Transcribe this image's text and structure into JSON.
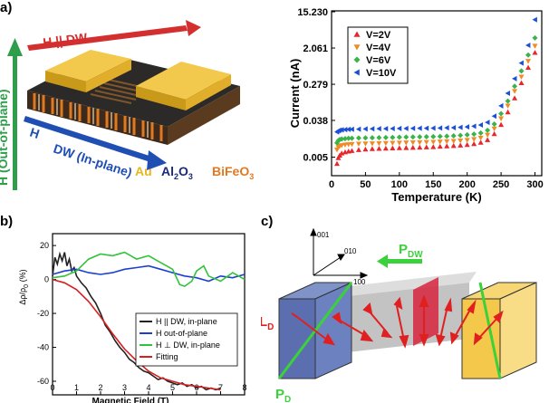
{
  "panel_labels": {
    "a": "a)",
    "b": "b)",
    "c": "c)"
  },
  "device": {
    "h_dw": "H || DW",
    "h_out_of_plane": "H (Out-of-plane)",
    "h_label": "H",
    "dw_in_plane": "DW (In-plane)",
    "materials": {
      "au": "Au",
      "al2o3_main": "Al",
      "al2o3_sub1": "2",
      "al2o3_o": "O",
      "al2o3_sub2": "3",
      "bfo_main": "BiFeO",
      "bfo_sub": "3"
    },
    "colors": {
      "red_arrow": "#d32f2f",
      "green_arrow": "#2e9e4b",
      "blue_arrow": "#1f4fb3",
      "au": "#e6b81f",
      "al2o3": "#1a2a7a",
      "bfo": "#e07a22"
    }
  },
  "chart_data": [
    {
      "id": "current-vs-temperature",
      "type": "scatter",
      "xlabel": "Temperature (K)",
      "ylabel": "Current (nA)",
      "xlim": [
        0,
        310
      ],
      "xticks": [
        0,
        50,
        100,
        150,
        200,
        250,
        300
      ],
      "yscale": "log",
      "ytick_labels": [
        "0.005",
        "0.038",
        "0.279",
        "2.061",
        "15.230"
      ],
      "yticks": [
        0.005,
        0.038,
        0.279,
        2.061,
        15.23
      ],
      "ylim": [
        0.0018,
        16
      ],
      "legend_position": "top-left",
      "series": [
        {
          "name": "V=2V",
          "color": "#e8262b",
          "marker": "triangle-up",
          "x": [
            8,
            10,
            12,
            15,
            20,
            25,
            30,
            40,
            50,
            60,
            70,
            80,
            90,
            100,
            110,
            120,
            130,
            140,
            150,
            160,
            170,
            180,
            190,
            200,
            210,
            220,
            230,
            240,
            250,
            260,
            270,
            280,
            290,
            300
          ],
          "y": [
            0.0035,
            0.0048,
            0.0055,
            0.0062,
            0.0066,
            0.0069,
            0.0071,
            0.0075,
            0.0077,
            0.0079,
            0.008,
            0.0081,
            0.0082,
            0.0083,
            0.0084,
            0.0085,
            0.0086,
            0.0087,
            0.0088,
            0.009,
            0.0092,
            0.0094,
            0.0096,
            0.0099,
            0.0104,
            0.0112,
            0.013,
            0.018,
            0.03,
            0.06,
            0.13,
            0.3,
            0.7,
            1.6
          ]
        },
        {
          "name": "V=4V",
          "color": "#f08a24",
          "marker": "triangle-down",
          "x": [
            8,
            10,
            12,
            15,
            20,
            25,
            30,
            40,
            50,
            60,
            70,
            80,
            90,
            100,
            110,
            120,
            130,
            140,
            150,
            160,
            170,
            180,
            190,
            200,
            210,
            220,
            230,
            240,
            250,
            260,
            270,
            280,
            290,
            300
          ],
          "y": [
            0.0075,
            0.0085,
            0.0092,
            0.0096,
            0.0099,
            0.0101,
            0.0102,
            0.0104,
            0.0105,
            0.0106,
            0.0107,
            0.0108,
            0.0109,
            0.011,
            0.0111,
            0.0112,
            0.0113,
            0.0114,
            0.0115,
            0.0117,
            0.0119,
            0.0121,
            0.0124,
            0.0128,
            0.0134,
            0.0145,
            0.017,
            0.024,
            0.042,
            0.085,
            0.19,
            0.42,
            1.0,
            2.3
          ]
        },
        {
          "name": "V=6V",
          "color": "#3bb34a",
          "marker": "diamond",
          "x": [
            8,
            10,
            12,
            15,
            20,
            25,
            30,
            40,
            50,
            60,
            70,
            80,
            90,
            100,
            110,
            120,
            130,
            140,
            150,
            160,
            170,
            180,
            190,
            200,
            210,
            220,
            230,
            240,
            250,
            260,
            270,
            280,
            290,
            300
          ],
          "y": [
            0.011,
            0.0125,
            0.0132,
            0.0136,
            0.0139,
            0.0141,
            0.0142,
            0.0144,
            0.0145,
            0.0146,
            0.0147,
            0.0148,
            0.0149,
            0.015,
            0.0151,
            0.0152,
            0.0153,
            0.0154,
            0.0155,
            0.0157,
            0.0159,
            0.0162,
            0.0166,
            0.0171,
            0.0178,
            0.019,
            0.022,
            0.031,
            0.055,
            0.11,
            0.25,
            0.58,
            1.4,
            3.6
          ]
        },
        {
          "name": "V=10V",
          "color": "#1c4fd8",
          "marker": "triangle-left",
          "x": [
            8,
            10,
            12,
            15,
            20,
            25,
            30,
            40,
            50,
            60,
            70,
            80,
            90,
            100,
            110,
            120,
            130,
            140,
            150,
            160,
            170,
            180,
            190,
            200,
            210,
            220,
            230,
            240,
            250,
            260,
            270,
            280,
            290,
            300
          ],
          "y": [
            0.02,
            0.0215,
            0.0222,
            0.0226,
            0.0229,
            0.0231,
            0.0233,
            0.0235,
            0.0237,
            0.0239,
            0.024,
            0.0241,
            0.0242,
            0.0243,
            0.0244,
            0.0245,
            0.0246,
            0.0247,
            0.0248,
            0.025,
            0.0252,
            0.0255,
            0.0259,
            0.0265,
            0.0275,
            0.0295,
            0.034,
            0.048,
            0.085,
            0.17,
            0.38,
            0.9,
            2.4,
            9.8
          ]
        }
      ]
    },
    {
      "id": "magnetoresistance",
      "type": "line",
      "xlabel": "Magnetic Field (T)",
      "ylabel_main": "Δρ/ρ",
      "ylabel_sub": "0",
      "ylabel_unit": " (%)",
      "xlim": [
        0,
        8
      ],
      "xticks": [
        0,
        1,
        2,
        3,
        4,
        5,
        6,
        7,
        8
      ],
      "ylim": [
        -68,
        27
      ],
      "yticks": [
        20,
        0,
        -20,
        -40,
        -60
      ],
      "legend_position": "center-right",
      "series": [
        {
          "name": "H || DW, in-plane",
          "color": "#222222",
          "x": [
            0,
            0.1,
            0.2,
            0.3,
            0.4,
            0.5,
            0.6,
            0.7,
            0.8,
            0.9,
            1.0,
            1.2,
            1.4,
            1.6,
            1.8,
            2.0,
            2.2,
            2.4,
            2.6,
            2.8,
            3.0,
            3.2,
            3.4,
            3.6,
            3.8,
            4.0,
            4.2,
            4.4,
            4.6,
            4.8,
            5.0,
            5.2,
            5.4,
            5.6,
            5.8,
            6.0,
            6.2,
            6.4,
            6.6,
            6.8,
            7.0
          ],
          "y": [
            2,
            13,
            9,
            15,
            11,
            16,
            8,
            12,
            5,
            7,
            2,
            -2,
            -5,
            -10,
            -14,
            -20,
            -27,
            -31,
            -36,
            -40,
            -43,
            -47,
            -49,
            -52,
            -54,
            -55,
            -57,
            -59,
            -58,
            -60,
            -61,
            -62,
            -61,
            -63,
            -62,
            -64,
            -63,
            -65,
            -64,
            -65,
            -64
          ]
        },
        {
          "name": "H out-of-plane",
          "color": "#1c3fd0",
          "x": [
            0,
            0.5,
            1.0,
            1.5,
            2.0,
            2.5,
            3.0,
            3.5,
            4.0,
            4.5,
            5.0,
            5.5,
            6.0,
            6.5,
            7.0,
            7.5,
            8.0
          ],
          "y": [
            3,
            5,
            6,
            4,
            3,
            4,
            6,
            7,
            8,
            6,
            4,
            2,
            1,
            -1,
            2,
            1,
            3
          ]
        },
        {
          "name": "H ⊥ DW, in-plane",
          "color": "#33c33a",
          "x": [
            0,
            0.5,
            1.0,
            1.5,
            2.0,
            2.5,
            3.0,
            3.5,
            4.0,
            4.5,
            5.0,
            5.3,
            5.5,
            5.8,
            6.0,
            6.3,
            6.5,
            7.0,
            7.5,
            8.0
          ],
          "y": [
            1,
            2,
            5,
            12,
            15,
            14,
            16,
            12,
            14,
            10,
            6,
            -3,
            -4,
            -1,
            5,
            8,
            2,
            -1,
            4,
            0
          ]
        },
        {
          "name": "Fitting",
          "color": "#d71f1f",
          "x": [
            0,
            0.5,
            1.0,
            1.5,
            2.0,
            2.5,
            3.0,
            3.5,
            4.0,
            4.5,
            5.0,
            5.5,
            6.0,
            6.5,
            7.0
          ],
          "y": [
            0,
            -2,
            -6,
            -13,
            -22,
            -32,
            -41,
            -48,
            -54,
            -58,
            -60,
            -62,
            -63,
            -64,
            -65
          ]
        }
      ]
    }
  ],
  "schematic": {
    "axis_001": "001",
    "axis_010": "010",
    "axis_100": "100",
    "p_dw_main": "P",
    "p_dw_sub": "DW",
    "l_d_main": "L",
    "l_d_sub": "D",
    "p_d_main": "P",
    "p_d_sub": "D"
  }
}
